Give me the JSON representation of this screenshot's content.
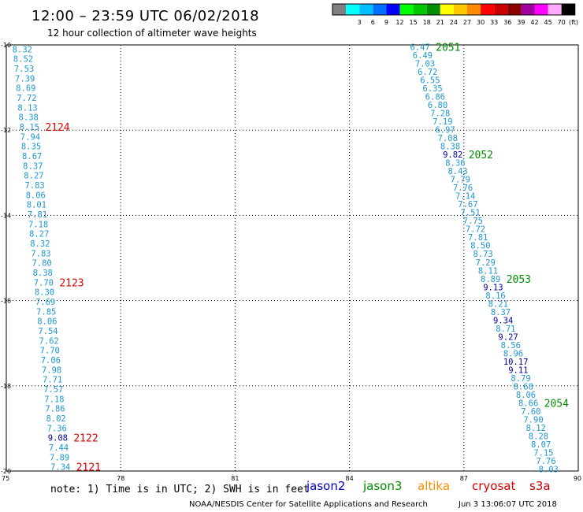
{
  "header": {
    "title": "12:00 – 23:59 UTC 06/02/2018",
    "subtitle": "12 hour collection of altimeter wave heights"
  },
  "color_scale": {
    "unit_label": "(ft)",
    "bins": [
      {
        "color": "#7f7f7f",
        "label": ""
      },
      {
        "color": "#00ffff",
        "label": "3"
      },
      {
        "color": "#00bfff",
        "label": "6"
      },
      {
        "color": "#0070ff",
        "label": "9"
      },
      {
        "color": "#0000ff",
        "label": "12"
      },
      {
        "color": "#00ff00",
        "label": "15"
      },
      {
        "color": "#00c800",
        "label": "18"
      },
      {
        "color": "#008c00",
        "label": "21"
      },
      {
        "color": "#ffff00",
        "label": "24"
      },
      {
        "color": "#ffc800",
        "label": "27"
      },
      {
        "color": "#ff8c00",
        "label": "30"
      },
      {
        "color": "#ff0000",
        "label": "33"
      },
      {
        "color": "#c80000",
        "label": "36"
      },
      {
        "color": "#8c0000",
        "label": "39"
      },
      {
        "color": "#a000a0",
        "label": "42"
      },
      {
        "color": "#ff00ff",
        "label": "45"
      },
      {
        "color": "#ffaaff",
        "label": "70"
      },
      {
        "color": "#000000",
        "label": ""
      }
    ]
  },
  "map": {
    "lon_range": [
      75,
      90
    ],
    "lat_range": [
      -20,
      -10
    ],
    "lon_ticks": [
      {
        "value": 75,
        "label": "75"
      },
      {
        "value": 78,
        "label": "78"
      },
      {
        "value": 81,
        "label": "81"
      },
      {
        "value": 84,
        "label": "84"
      },
      {
        "value": 87,
        "label": "87"
      },
      {
        "value": 90,
        "label": "90"
      }
    ],
    "lat_ticks": [
      {
        "value": -10,
        "label": "-10"
      },
      {
        "value": -12,
        "label": "-12"
      },
      {
        "value": -14,
        "label": "-14"
      },
      {
        "value": -16,
        "label": "-16"
      },
      {
        "value": -18,
        "label": "-18"
      },
      {
        "value": -20,
        "label": "-20"
      }
    ],
    "grid": true
  },
  "colors": {
    "light": "#1e96d2",
    "dark": "#00009b",
    "jason2": "#0000c8",
    "jason3": "#008c00",
    "altika": "#ff8c00",
    "cryosat": "#dc0000",
    "s3a": "#c00000"
  },
  "chart_data": {
    "type": "scatter",
    "x_axis": "longitude (deg E)",
    "y_axis": "latitude (deg)",
    "tracks": [
      {
        "satellite": "cryosat",
        "lon_top": 75.42,
        "lon_bottom": 76.42,
        "lat_top": -10.1,
        "lat_bottom": -19.9,
        "values": [
          "8.32",
          "8.52",
          "7.53",
          "7.39",
          "8.69",
          "7.72",
          "8.13",
          "8.38",
          "8.15",
          "7.94",
          "8.35",
          "8.67",
          "8.37",
          "8.27",
          "7.83",
          "8.06",
          "8.01",
          "7.81",
          "7.18",
          "8.27",
          "8.32",
          "7.83",
          "7.80",
          "8.38",
          "7.70",
          "8.30",
          "7.69",
          "7.85",
          "8.06",
          "7.54",
          "7.62",
          "7.70",
          "7.06",
          "7.98",
          "7.71",
          "7.57",
          "7.18",
          "7.86",
          "8.02",
          "7.36",
          "9.08",
          "7.44",
          "7.89",
          "7.34"
        ],
        "dark_indices": [
          40
        ],
        "pass_labels": [
          {
            "label": "2124",
            "after_index": 8
          },
          {
            "label": "2123",
            "after_index": 24
          },
          {
            "label": "2122",
            "after_index": 40
          },
          {
            "label": "2121",
            "after_index": 43
          }
        ]
      },
      {
        "satellite": "jason3",
        "lon_top": 85.85,
        "lon_bottom": 89.22,
        "lat_top": -10.05,
        "lat_bottom": -19.95,
        "values": [
          "6.47",
          "6.49",
          "7.03",
          "6.72",
          "6.55",
          "6.35",
          "6.86",
          "6.80",
          "7.28",
          "7.19",
          "6.97",
          "7.08",
          "8.38",
          "9.82",
          "8.36",
          "8.43",
          "7.79",
          "7.76",
          "7.14",
          "7.67",
          "7.51",
          "7.75",
          "7.72",
          "7.81",
          "8.50",
          "8.73",
          "7.29",
          "8.11",
          "8.89",
          "9.13",
          "8.16",
          "8.21",
          "8.37",
          "9.34",
          "8.71",
          "9.27",
          "8.56",
          "8.96",
          "10.17",
          "9.11",
          "8.79",
          "8.68",
          "8.06",
          "8.66",
          "7.60",
          "7.90",
          "8.12",
          "8.28",
          "8.07",
          "7.15",
          "7.76",
          "8.03"
        ],
        "dark_indices": [
          13,
          29,
          33,
          35,
          38,
          39
        ],
        "pass_labels": [
          {
            "label": "2051",
            "after_index": 0
          },
          {
            "label": "2052",
            "after_index": 13
          },
          {
            "label": "2053",
            "after_index": 28
          },
          {
            "label": "2054",
            "after_index": 43
          }
        ]
      }
    ]
  },
  "footer": {
    "note": "note:  1) Time is in UTC;  2) SWH is in feet",
    "satellites": [
      {
        "key": "jason2",
        "label": "jason2"
      },
      {
        "key": "jason3",
        "label": "jason3"
      },
      {
        "key": "altika",
        "label": "altika"
      },
      {
        "key": "cryosat",
        "label": "cryosat"
      },
      {
        "key": "s3a",
        "label": "s3a"
      }
    ],
    "credit": "NOAA/NESDIS Center for Satellite Applications and Research",
    "timestamp": "Jun  3 13:06:07 UTC 2018"
  }
}
